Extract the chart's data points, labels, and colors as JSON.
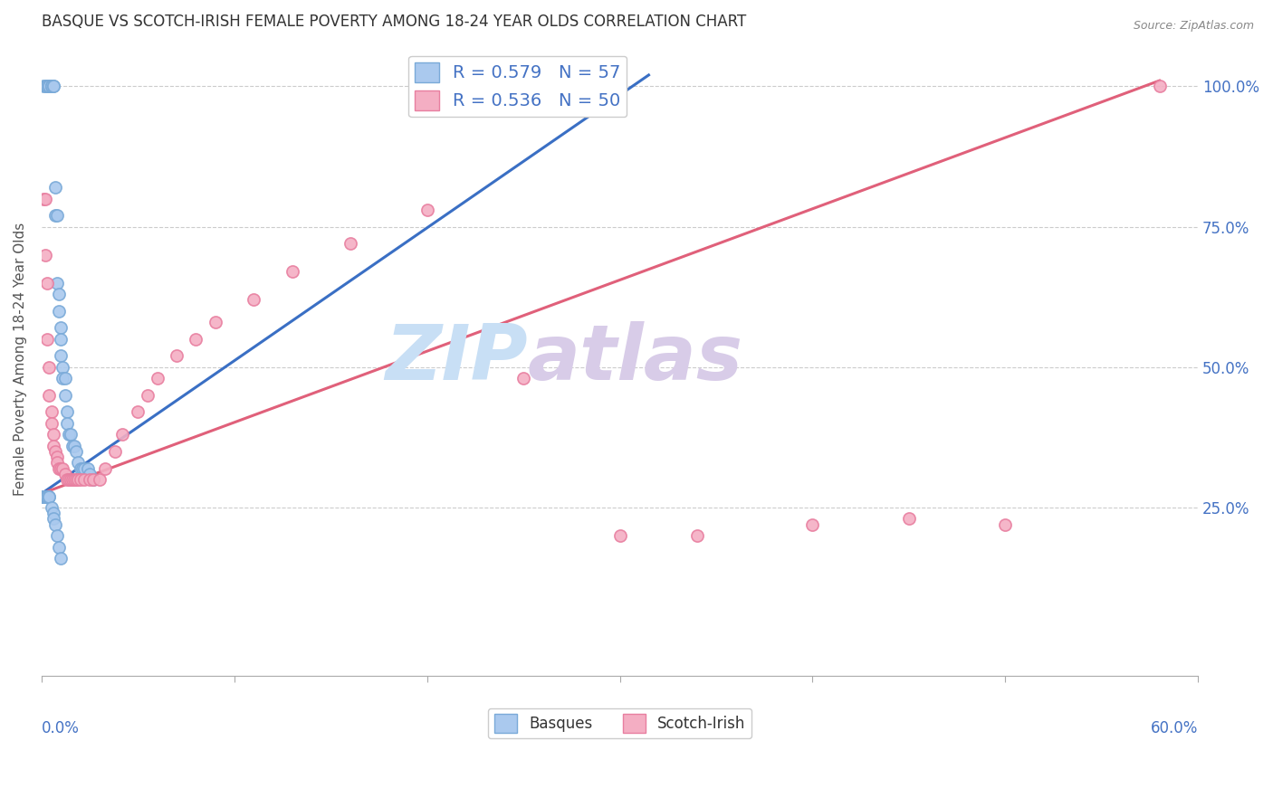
{
  "title": "BASQUE VS SCOTCH-IRISH FEMALE POVERTY AMONG 18-24 YEAR OLDS CORRELATION CHART",
  "source": "Source: ZipAtlas.com",
  "ylabel": "Female Poverty Among 18-24 Year Olds",
  "ytick_labels": [
    "25.0%",
    "50.0%",
    "75.0%",
    "100.0%"
  ],
  "ytick_values": [
    0.25,
    0.5,
    0.75,
    1.0
  ],
  "xlim": [
    0.0,
    0.6
  ],
  "ylim": [
    -0.05,
    1.08
  ],
  "basque_color": "#aac9ee",
  "scotch_color": "#f4aec3",
  "basque_edge_color": "#7aaad8",
  "scotch_edge_color": "#e87fa0",
  "basque_line_color": "#3a6fc4",
  "scotch_line_color": "#e0607a",
  "R_basque": 0.579,
  "N_basque": 57,
  "R_scotch": 0.536,
  "N_scotch": 50,
  "watermark_zip": "ZIP",
  "watermark_atlas": "atlas",
  "watermark_color_zip": "#c8dff5",
  "watermark_color_atlas": "#d8cce8",
  "blue_line_x": [
    0.0,
    0.315
  ],
  "blue_line_y": [
    0.275,
    1.02
  ],
  "pink_line_x": [
    0.0,
    0.58
  ],
  "pink_line_y": [
    0.275,
    1.01
  ],
  "basque_x": [
    0.001,
    0.002,
    0.003,
    0.003,
    0.004,
    0.004,
    0.005,
    0.005,
    0.005,
    0.006,
    0.006,
    0.007,
    0.007,
    0.008,
    0.008,
    0.009,
    0.009,
    0.01,
    0.01,
    0.01,
    0.011,
    0.011,
    0.012,
    0.012,
    0.013,
    0.013,
    0.014,
    0.015,
    0.016,
    0.017,
    0.018,
    0.019,
    0.02,
    0.021,
    0.022,
    0.024,
    0.025,
    0.027,
    0.001,
    0.001,
    0.001,
    0.001,
    0.002,
    0.002,
    0.002,
    0.003,
    0.003,
    0.003,
    0.004,
    0.004,
    0.005,
    0.006,
    0.006,
    0.007,
    0.008,
    0.009,
    0.01
  ],
  "basque_y": [
    1.0,
    1.0,
    1.0,
    1.0,
    1.0,
    1.0,
    1.0,
    1.0,
    1.0,
    1.0,
    1.0,
    0.82,
    0.77,
    0.77,
    0.65,
    0.63,
    0.6,
    0.57,
    0.55,
    0.52,
    0.5,
    0.48,
    0.48,
    0.45,
    0.42,
    0.4,
    0.38,
    0.38,
    0.36,
    0.36,
    0.35,
    0.33,
    0.32,
    0.32,
    0.32,
    0.32,
    0.31,
    0.3,
    0.27,
    0.27,
    0.27,
    0.27,
    0.27,
    0.27,
    0.27,
    0.27,
    0.27,
    0.27,
    0.27,
    0.27,
    0.25,
    0.24,
    0.23,
    0.22,
    0.2,
    0.18,
    0.16
  ],
  "scotch_x": [
    0.001,
    0.002,
    0.002,
    0.003,
    0.003,
    0.004,
    0.004,
    0.005,
    0.005,
    0.006,
    0.006,
    0.007,
    0.008,
    0.008,
    0.009,
    0.01,
    0.011,
    0.012,
    0.013,
    0.014,
    0.015,
    0.016,
    0.017,
    0.018,
    0.019,
    0.02,
    0.022,
    0.025,
    0.027,
    0.03,
    0.033,
    0.038,
    0.042,
    0.05,
    0.055,
    0.06,
    0.07,
    0.08,
    0.09,
    0.11,
    0.13,
    0.16,
    0.2,
    0.25,
    0.3,
    0.34,
    0.4,
    0.45,
    0.5,
    0.58
  ],
  "scotch_y": [
    0.8,
    0.8,
    0.7,
    0.65,
    0.55,
    0.5,
    0.45,
    0.42,
    0.4,
    0.38,
    0.36,
    0.35,
    0.34,
    0.33,
    0.32,
    0.32,
    0.32,
    0.31,
    0.3,
    0.3,
    0.3,
    0.3,
    0.3,
    0.3,
    0.3,
    0.3,
    0.3,
    0.3,
    0.3,
    0.3,
    0.32,
    0.35,
    0.38,
    0.42,
    0.45,
    0.48,
    0.52,
    0.55,
    0.58,
    0.62,
    0.67,
    0.72,
    0.78,
    0.48,
    0.2,
    0.2,
    0.22,
    0.23,
    0.22,
    1.0
  ]
}
